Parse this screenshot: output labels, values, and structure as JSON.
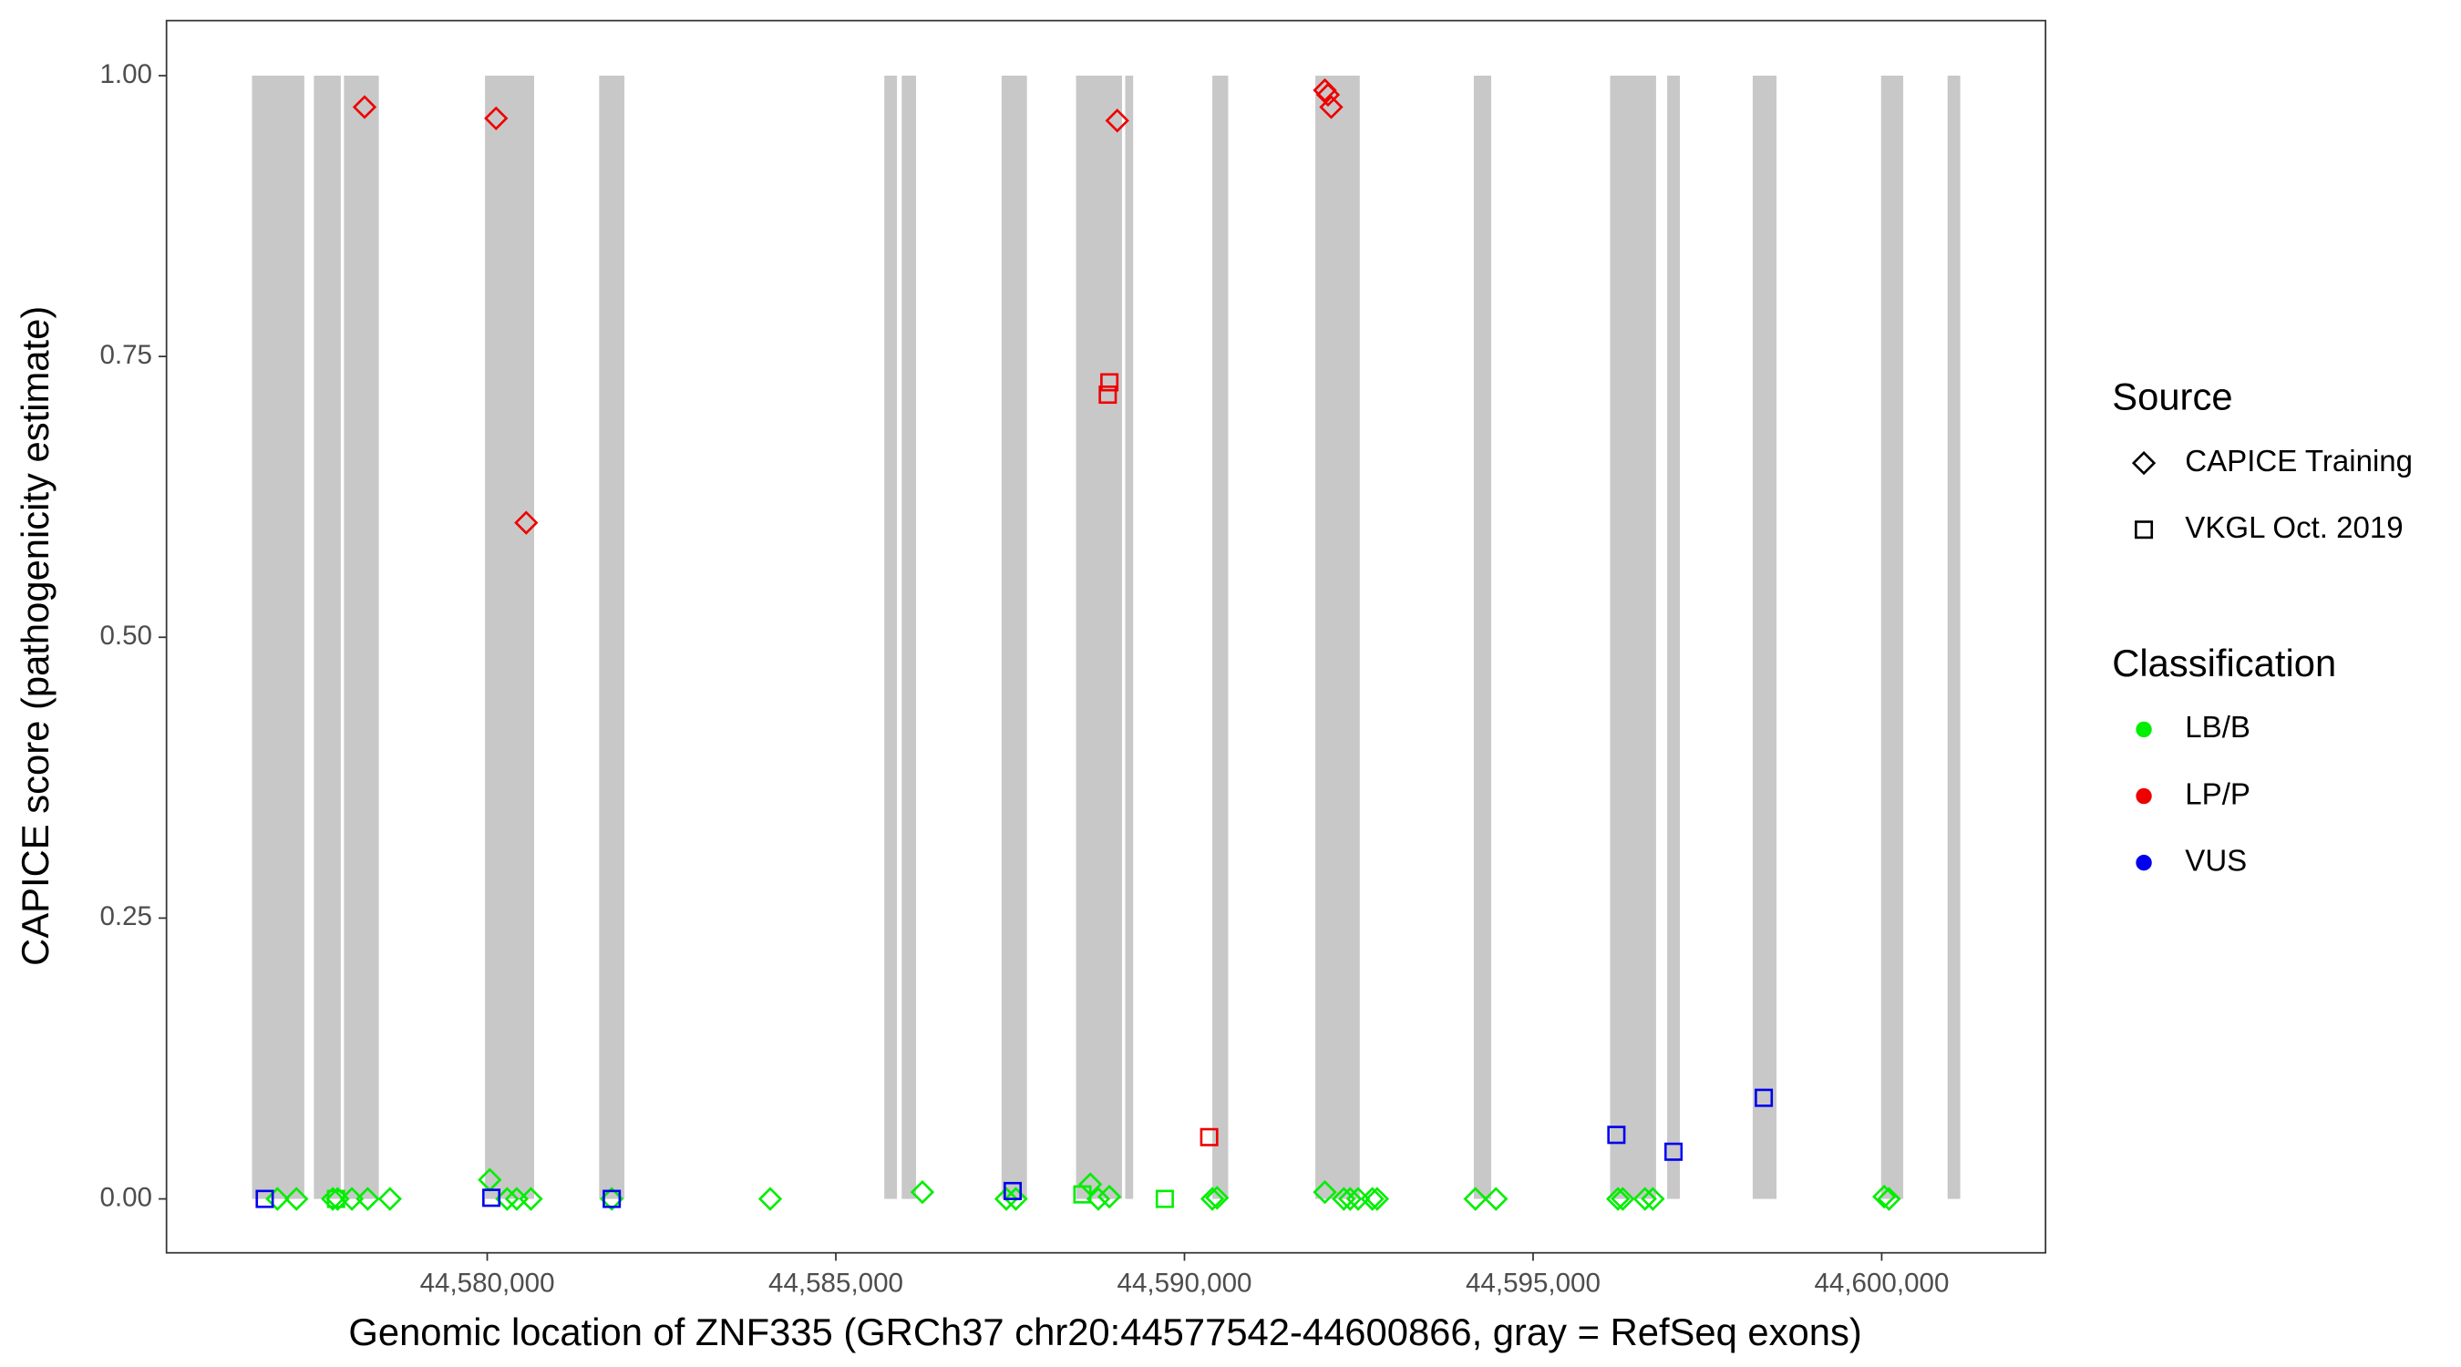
{
  "chart_data": {
    "type": "scatter",
    "xlabel": "Genomic location of ZNF335 (GRCh37 chr20:44577542-44600866, gray = RefSeq exons)",
    "ylabel": "CAPICE score (pathogenicity estimate)",
    "xlim": [
      44575400,
      44602350
    ],
    "ylim": [
      -0.048,
      1.049
    ],
    "xticks": [
      {
        "value": 44580000,
        "label": "44,580,000"
      },
      {
        "value": 44585000,
        "label": "44,585,000"
      },
      {
        "value": 44590000,
        "label": "44,590,000"
      },
      {
        "value": 44595000,
        "label": "44,595,000"
      },
      {
        "value": 44600000,
        "label": "44,600,000"
      }
    ],
    "yticks": [
      {
        "value": 0,
        "label": "0.00"
      },
      {
        "value": 0.25,
        "label": "0.25"
      },
      {
        "value": 0.5,
        "label": "0.50"
      },
      {
        "value": 0.75,
        "label": "0.75"
      },
      {
        "value": 1,
        "label": "1.00"
      }
    ],
    "grid": false,
    "exons": {
      "color": "#c8c8c8",
      "ymin": 0,
      "ymax": 1,
      "start": [
        44576627,
        44577514,
        44577945,
        44579968,
        44581605,
        44585695,
        44585945,
        44587377,
        44588445,
        44589150,
        44590400,
        44591877,
        44594150,
        44596105,
        44596923,
        44598150,
        44599991,
        44600945
      ],
      "end": [
        44577377,
        44577900,
        44578445,
        44580673,
        44581968,
        44585877,
        44586150,
        44587741,
        44589105,
        44589264,
        44590627,
        44592514,
        44594400,
        44596764,
        44597105,
        44598491,
        44600309,
        44601127
      ]
    },
    "legend_position": "right",
    "legends": [
      {
        "title": "Source",
        "items": [
          {
            "label": "CAPICE Training",
            "shape": "diamond"
          },
          {
            "label": "VKGL Oct. 2019",
            "shape": "square"
          }
        ]
      },
      {
        "title": "Classification",
        "items": [
          {
            "label": "LB/B",
            "color": "#00ee00"
          },
          {
            "label": "LP/P",
            "color": "#ee0000"
          },
          {
            "label": "VUS",
            "color": "#0000ee"
          }
        ]
      }
    ],
    "series": [
      {
        "source": "CAPICE Training",
        "classification": "LB/B",
        "shape": "diamond",
        "color": "#00ee00",
        "x": [
          44576991,
          44577264,
          44577786,
          44577855,
          44578059,
          44578286,
          44578605,
          44580036,
          44580286,
          44580423,
          44580627,
          44581786,
          44584059,
          44586241,
          44587445,
          44587582,
          44588650,
          44588764,
          44588923,
          44590400,
          44590468,
          44592014,
          44592286,
          44592377,
          44592491,
          44592695,
          44592764,
          44594173,
          44594468,
          44596218,
          44596286,
          44596605,
          44596718,
          44600036,
          44600105
        ],
        "values": [
          0,
          0,
          0,
          0,
          0,
          0,
          0,
          0.017,
          0,
          0,
          0,
          0,
          0,
          0.006,
          0,
          0,
          0.013,
          0,
          0.002,
          0,
          0.001,
          0.006,
          0,
          0,
          0,
          0,
          0,
          0,
          0,
          0,
          0,
          0,
          0,
          0.002,
          0
        ]
      },
      {
        "source": "VKGL Oct. 2019",
        "classification": "LB/B",
        "shape": "square",
        "color": "#00ee00",
        "x": [
          44577832,
          44588536,
          44589718
        ],
        "values": [
          0,
          0.004,
          0
        ]
      },
      {
        "source": "CAPICE Training",
        "classification": "LP/P",
        "shape": "diamond",
        "color": "#ee0000",
        "x": [
          44578241,
          44580127,
          44580559,
          44589036,
          44592014,
          44592059,
          44592105
        ],
        "values": [
          0.972,
          0.962,
          0.602,
          0.96,
          0.987,
          0.983,
          0.972
        ]
      },
      {
        "source": "VKGL Oct. 2019",
        "classification": "LP/P",
        "shape": "square",
        "color": "#ee0000",
        "x": [
          44588900,
          44588923,
          44590355
        ],
        "values": [
          0.716,
          0.727,
          0.055
        ]
      },
      {
        "source": "VKGL Oct. 2019",
        "classification": "VUS",
        "shape": "square",
        "color": "#0000ee",
        "x": [
          44576809,
          44580059,
          44581786,
          44587536,
          44596195,
          44597014,
          44598309
        ],
        "values": [
          0,
          0.001,
          0,
          0.007,
          0.057,
          0.042,
          0.09
        ]
      }
    ]
  }
}
